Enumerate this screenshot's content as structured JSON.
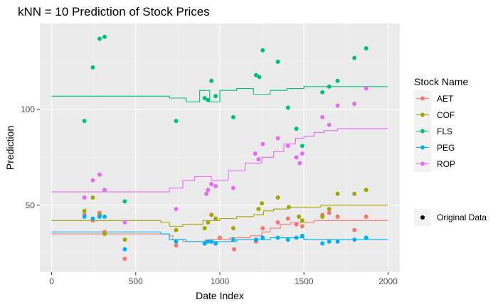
{
  "chart_data": {
    "type": "scatter",
    "title": "kNN = 10 Prediction of Stock Prices",
    "xlabel": "Date Index",
    "ylabel": "Prediction",
    "xlim": [
      -70,
      2070
    ],
    "ylim": [
      15,
      145
    ],
    "xticks": [
      0,
      500,
      1000,
      1500,
      2000
    ],
    "yticks": [
      50,
      100
    ],
    "grid": true,
    "legend": {
      "title": "Stock Name",
      "position": "right",
      "shape_label": "Original Data"
    },
    "series": [
      {
        "name": "AET",
        "color": "#F8766D",
        "points": [
          [
            195,
            45
          ],
          [
            245,
            42
          ],
          [
            285,
            46
          ],
          [
            315,
            36
          ],
          [
            435,
            22
          ],
          [
            740,
            29
          ],
          [
            920,
            31
          ],
          [
            950,
            31
          ],
          [
            1000,
            33
          ],
          [
            1085,
            27
          ],
          [
            1215,
            31
          ],
          [
            1255,
            38
          ],
          [
            1345,
            41
          ],
          [
            1405,
            43
          ],
          [
            1455,
            40
          ],
          [
            1490,
            39
          ],
          [
            1610,
            45
          ],
          [
            1650,
            46
          ],
          [
            1700,
            44
          ],
          [
            1800,
            37
          ],
          [
            1870,
            44
          ]
        ],
        "line": [
          [
            0,
            35
          ],
          [
            700,
            34
          ],
          [
            720,
            32
          ],
          [
            780,
            31
          ],
          [
            940,
            32
          ],
          [
            1060,
            33
          ],
          [
            1180,
            34
          ],
          [
            1250,
            36
          ],
          [
            1300,
            38
          ],
          [
            1360,
            40
          ],
          [
            1420,
            41
          ],
          [
            1560,
            42
          ],
          [
            2000,
            42
          ]
        ]
      },
      {
        "name": "COF",
        "color": "#A3A500",
        "points": [
          [
            195,
            47
          ],
          [
            245,
            54
          ],
          [
            285,
            45
          ],
          [
            315,
            35
          ],
          [
            435,
            32
          ],
          [
            740,
            37
          ],
          [
            910,
            38
          ],
          [
            930,
            41
          ],
          [
            950,
            45
          ],
          [
            975,
            43
          ],
          [
            1080,
            38
          ],
          [
            1230,
            48
          ],
          [
            1250,
            51
          ],
          [
            1345,
            54
          ],
          [
            1410,
            49
          ],
          [
            1470,
            44
          ],
          [
            1490,
            42
          ],
          [
            1610,
            44
          ],
          [
            1650,
            48
          ],
          [
            1700,
            56
          ],
          [
            1800,
            56
          ],
          [
            1870,
            58
          ]
        ],
        "line": [
          [
            0,
            42
          ],
          [
            650,
            41
          ],
          [
            700,
            39
          ],
          [
            780,
            40
          ],
          [
            900,
            42
          ],
          [
            1000,
            43
          ],
          [
            1100,
            44
          ],
          [
            1200,
            45
          ],
          [
            1260,
            47
          ],
          [
            1320,
            48
          ],
          [
            1400,
            49
          ],
          [
            1600,
            50
          ],
          [
            2000,
            50
          ]
        ]
      },
      {
        "name": "FLS",
        "color": "#00BF7D",
        "points": [
          [
            195,
            94
          ],
          [
            245,
            122
          ],
          [
            285,
            137
          ],
          [
            315,
            138
          ],
          [
            435,
            52
          ],
          [
            740,
            94
          ],
          [
            910,
            106
          ],
          [
            930,
            105
          ],
          [
            950,
            115
          ],
          [
            975,
            107
          ],
          [
            1080,
            96
          ],
          [
            1215,
            118
          ],
          [
            1235,
            117
          ],
          [
            1255,
            131
          ],
          [
            1345,
            125
          ],
          [
            1405,
            101
          ],
          [
            1455,
            90
          ],
          [
            1490,
            81
          ],
          [
            1610,
            109
          ],
          [
            1650,
            112
          ],
          [
            1700,
            115
          ],
          [
            1800,
            127
          ],
          [
            1870,
            132
          ]
        ],
        "line": [
          [
            0,
            107
          ],
          [
            650,
            107
          ],
          [
            700,
            106
          ],
          [
            800,
            104
          ],
          [
            880,
            110
          ],
          [
            940,
            104
          ],
          [
            1000,
            110
          ],
          [
            1100,
            111
          ],
          [
            1200,
            108
          ],
          [
            1300,
            110
          ],
          [
            1400,
            111
          ],
          [
            1500,
            112
          ],
          [
            2000,
            112
          ]
        ]
      },
      {
        "name": "PEG",
        "color": "#00B0F6",
        "points": [
          [
            195,
            44
          ],
          [
            245,
            43
          ],
          [
            285,
            44
          ],
          [
            315,
            44
          ],
          [
            435,
            27
          ],
          [
            740,
            31
          ],
          [
            910,
            30
          ],
          [
            930,
            31
          ],
          [
            950,
            31
          ],
          [
            975,
            30
          ],
          [
            1080,
            32
          ],
          [
            1215,
            32
          ],
          [
            1255,
            33
          ],
          [
            1345,
            33
          ],
          [
            1405,
            32
          ],
          [
            1455,
            33
          ],
          [
            1490,
            34
          ],
          [
            1610,
            30
          ],
          [
            1650,
            31
          ],
          [
            1700,
            31
          ],
          [
            1800,
            32
          ],
          [
            1870,
            33
          ]
        ],
        "line": [
          [
            0,
            36
          ],
          [
            650,
            35
          ],
          [
            700,
            32
          ],
          [
            800,
            31
          ],
          [
            900,
            31
          ],
          [
            1100,
            32
          ],
          [
            1200,
            32
          ],
          [
            1300,
            33
          ],
          [
            1500,
            32
          ],
          [
            2000,
            32
          ]
        ]
      },
      {
        "name": "ROP",
        "color": "#E76BF3",
        "points": [
          [
            195,
            54
          ],
          [
            245,
            63
          ],
          [
            285,
            66
          ],
          [
            315,
            58
          ],
          [
            435,
            41
          ],
          [
            740,
            48
          ],
          [
            920,
            56
          ],
          [
            930,
            58
          ],
          [
            950,
            61
          ],
          [
            975,
            60
          ],
          [
            1080,
            59
          ],
          [
            1210,
            77
          ],
          [
            1230,
            74
          ],
          [
            1255,
            82
          ],
          [
            1345,
            85
          ],
          [
            1405,
            81
          ],
          [
            1455,
            75
          ],
          [
            1475,
            72
          ],
          [
            1490,
            77
          ],
          [
            1610,
            96
          ],
          [
            1650,
            92
          ],
          [
            1700,
            102
          ],
          [
            1800,
            103
          ],
          [
            1870,
            111
          ]
        ],
        "line": [
          [
            0,
            57
          ],
          [
            600,
            57
          ],
          [
            700,
            59
          ],
          [
            780,
            63
          ],
          [
            850,
            65
          ],
          [
            950,
            63
          ],
          [
            1050,
            68
          ],
          [
            1150,
            72
          ],
          [
            1250,
            75
          ],
          [
            1320,
            78
          ],
          [
            1380,
            82
          ],
          [
            1450,
            85
          ],
          [
            1500,
            86
          ],
          [
            1560,
            88
          ],
          [
            1620,
            89
          ],
          [
            1700,
            90
          ],
          [
            2000,
            90
          ]
        ]
      }
    ]
  }
}
